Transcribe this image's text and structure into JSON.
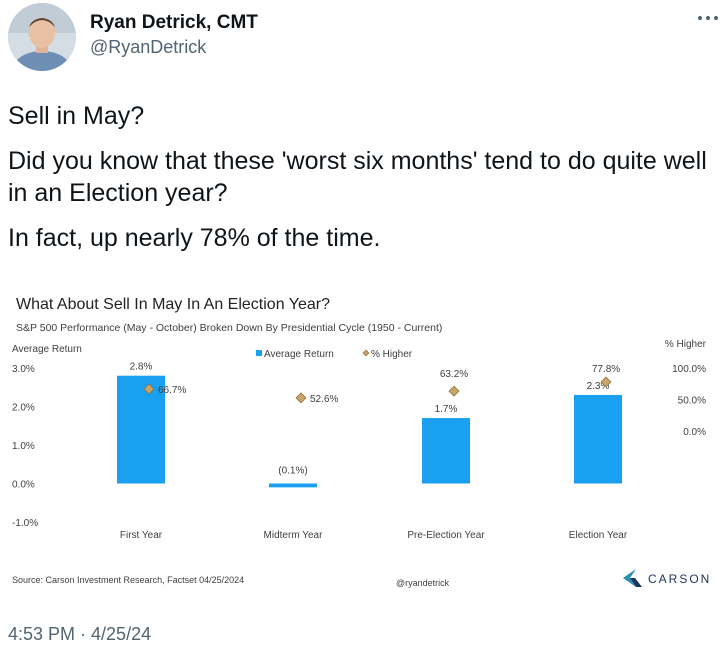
{
  "tweet": {
    "author_name": "Ryan Detrick, CMT",
    "author_handle": "@RyanDetrick",
    "paragraphs": [
      "Sell in May?",
      "Did you know that these 'worst six months' tend to do quite well in an Election year?",
      "In fact, up nearly 78% of the time."
    ],
    "timestamp": "4:53 PM · 4/25/24",
    "icons": {
      "more": "more-icon",
      "avatar": "avatar"
    }
  },
  "chart": {
    "title": "What About Sell In May In An Election Year?",
    "subtitle": "S&P 500 Performance (May - October) Broken Down By Presidential Cycle (1950 - Current)",
    "left_axis_label": "Average Return",
    "right_axis_label": "% Higher",
    "legend": {
      "bar_label": "Average Return",
      "marker_label": "% Higher"
    },
    "source": "Source: Carson Investment Research, Factset 04/25/2024",
    "watermark": "@ryandetrick",
    "logo_text": "CARSON",
    "colors": {
      "bar": "#1aa0f0",
      "marker": "#c9a46a",
      "marker_stroke": "#8a6a30",
      "text": "#404040",
      "logo_teal": "#2a8fb0",
      "logo_navy": "#1d3557"
    }
  },
  "chart_data": {
    "type": "bar",
    "categories": [
      "First Year",
      "Midterm Year",
      "Pre-Election Year",
      "Election Year"
    ],
    "series": [
      {
        "name": "Average Return",
        "axis": "left",
        "values": [
          2.8,
          -0.1,
          1.7,
          2.3
        ],
        "value_labels": [
          "2.8%",
          "(0.1%)",
          "1.7%",
          "2.3%"
        ]
      },
      {
        "name": "% Higher",
        "axis": "right",
        "marker": "diamond",
        "values": [
          66.7,
          52.6,
          63.2,
          77.8
        ],
        "value_labels": [
          "66.7%",
          "52.6%",
          "63.2%",
          "77.8%"
        ]
      }
    ],
    "y_left": {
      "ylim": [
        -1.0,
        3.0
      ],
      "ticks": [
        "3.0%",
        "2.0%",
        "1.0%",
        "0.0%",
        "-1.0%"
      ],
      "tick_values": [
        3.0,
        2.0,
        1.0,
        0.0,
        -1.0
      ]
    },
    "y_right": {
      "ylim": [
        0.0,
        100.0
      ],
      "ticks": [
        "100.0%",
        "50.0%",
        "0.0%"
      ],
      "tick_values": [
        100.0,
        50.0,
        0.0
      ]
    },
    "legend_position": "top-center",
    "grid": false
  }
}
